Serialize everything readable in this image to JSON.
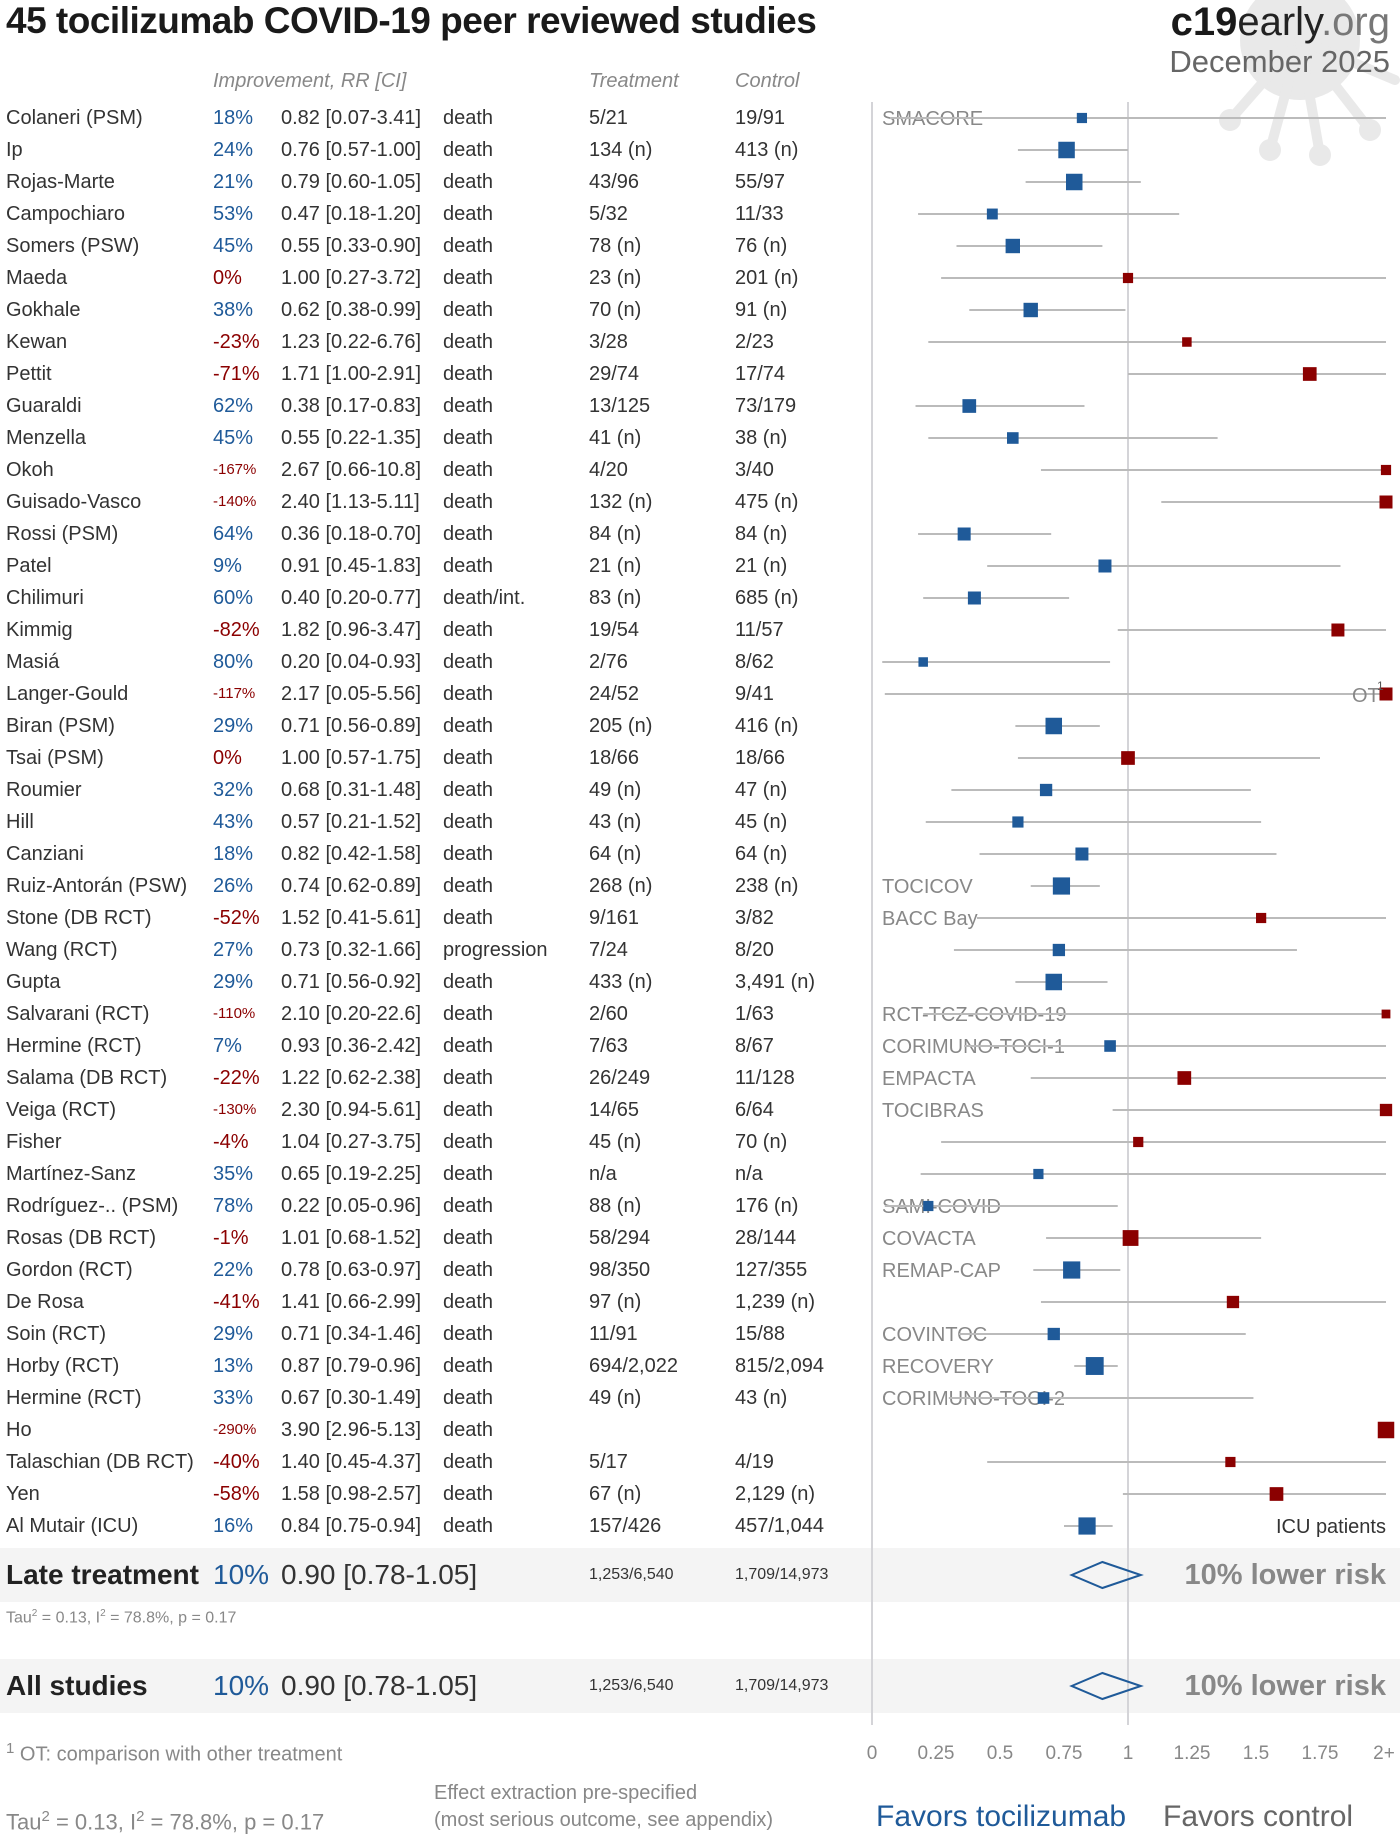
{
  "header": {
    "title": "45 tocilizumab COVID-19 peer reviewed studies",
    "brand_c19": "c19",
    "brand_early": "early",
    "brand_org": ".org",
    "date": "December 2025"
  },
  "columns": {
    "improvement": "Improvement, RR [CI]",
    "treatment": "Treatment",
    "control": "Control"
  },
  "colors": {
    "favors_treatment": "#1f5a99",
    "favors_control": "#8b0000",
    "ci_line": "#bbbbbb",
    "summary_band": "#f4f4f4"
  },
  "chart_data": {
    "type": "forest",
    "title": "45 tocilizumab COVID-19 peer reviewed studies",
    "xlabel_left": "Favors tocilizumab",
    "xlabel_right": "Favors control",
    "xlim": [
      0,
      2
    ],
    "ticks": [
      "0",
      "0.25",
      "0.5",
      "0.75",
      "1",
      "1.25",
      "1.5",
      "1.75",
      "2+"
    ],
    "tick_values": [
      0,
      0.25,
      0.5,
      0.75,
      1,
      1.25,
      1.5,
      1.75,
      2
    ],
    "studies": [
      {
        "name": "Colaneri (PSM)",
        "improvement": "18%",
        "rr": 0.82,
        "lo": 0.07,
        "hi": 3.41,
        "rr_text": "0.82 [0.07-3.41]",
        "outcome": "death",
        "treatment": "5/21",
        "control": "19/91",
        "trial": "SMACORE",
        "weight": 0.3
      },
      {
        "name": "Ip",
        "improvement": "24%",
        "rr": 0.76,
        "lo": 0.57,
        "hi": 1.0,
        "rr_text": "0.76 [0.57-1.00]",
        "outcome": "death",
        "treatment": "134 (n)",
        "control": "413 (n)",
        "trial": "",
        "weight": 0.75
      },
      {
        "name": "Rojas-Marte",
        "improvement": "21%",
        "rr": 0.79,
        "lo": 0.6,
        "hi": 1.05,
        "rr_text": "0.79 [0.60-1.05]",
        "outcome": "death",
        "treatment": "43/96",
        "control": "55/97",
        "trial": "",
        "weight": 0.75
      },
      {
        "name": "Campochiaro",
        "improvement": "53%",
        "rr": 0.47,
        "lo": 0.18,
        "hi": 1.2,
        "rr_text": "0.47 [0.18-1.20]",
        "outcome": "death",
        "treatment": "5/32",
        "control": "11/33",
        "trial": "",
        "weight": 0.35
      },
      {
        "name": "Somers (PSW)",
        "improvement": "45%",
        "rr": 0.55,
        "lo": 0.33,
        "hi": 0.9,
        "rr_text": "0.55 [0.33-0.90]",
        "outcome": "death",
        "treatment": "78 (n)",
        "control": "76 (n)",
        "trial": "",
        "weight": 0.6
      },
      {
        "name": "Maeda",
        "improvement": "0%",
        "rr": 1.0,
        "lo": 0.27,
        "hi": 3.72,
        "rr_text": "1.00 [0.27-3.72]",
        "outcome": "death",
        "treatment": "23 (n)",
        "control": "201 (n)",
        "trial": "",
        "weight": 0.3
      },
      {
        "name": "Gokhale",
        "improvement": "38%",
        "rr": 0.62,
        "lo": 0.38,
        "hi": 0.99,
        "rr_text": "0.62 [0.38-0.99]",
        "outcome": "death",
        "treatment": "70 (n)",
        "control": "91 (n)",
        "trial": "",
        "weight": 0.6
      },
      {
        "name": "Kewan",
        "improvement": "-23%",
        "rr": 1.23,
        "lo": 0.22,
        "hi": 6.76,
        "rr_text": "1.23 [0.22-6.76]",
        "outcome": "death",
        "treatment": "3/28",
        "control": "2/23",
        "trial": "",
        "weight": 0.25
      },
      {
        "name": "Pettit",
        "improvement": "-71%",
        "rr": 1.71,
        "lo": 1.0,
        "hi": 2.91,
        "rr_text": "1.71 [1.00-2.91]",
        "outcome": "death",
        "treatment": "29/74",
        "control": "17/74",
        "trial": "",
        "weight": 0.55
      },
      {
        "name": "Guaraldi",
        "improvement": "62%",
        "rr": 0.38,
        "lo": 0.17,
        "hi": 0.83,
        "rr_text": "0.38 [0.17-0.83]",
        "outcome": "death",
        "treatment": "13/125",
        "control": "73/179",
        "trial": "",
        "weight": 0.55
      },
      {
        "name": "Menzella",
        "improvement": "45%",
        "rr": 0.55,
        "lo": 0.22,
        "hi": 1.35,
        "rr_text": "0.55 [0.22-1.35]",
        "outcome": "death",
        "treatment": "41 (n)",
        "control": "38 (n)",
        "trial": "",
        "weight": 0.4
      },
      {
        "name": "Okoh",
        "improvement": "-167%",
        "rr": 2.67,
        "lo": 0.66,
        "hi": 10.8,
        "rr_text": "2.67 [0.66-10.8]",
        "outcome": "death",
        "treatment": "4/20",
        "control": "3/40",
        "trial": "",
        "weight": 0.3
      },
      {
        "name": "Guisado-Vasco",
        "improvement": "-140%",
        "rr": 2.4,
        "lo": 1.13,
        "hi": 5.11,
        "rr_text": "2.40 [1.13-5.11]",
        "outcome": "death",
        "treatment": "132 (n)",
        "control": "475 (n)",
        "trial": "",
        "weight": 0.5
      },
      {
        "name": "Rossi (PSM)",
        "improvement": "64%",
        "rr": 0.36,
        "lo": 0.18,
        "hi": 0.7,
        "rr_text": "0.36 [0.18-0.70]",
        "outcome": "death",
        "treatment": "84 (n)",
        "control": "84 (n)",
        "trial": "",
        "weight": 0.5
      },
      {
        "name": "Patel",
        "improvement": "9%",
        "rr": 0.91,
        "lo": 0.45,
        "hi": 1.83,
        "rr_text": "0.91 [0.45-1.83]",
        "outcome": "death",
        "treatment": "21 (n)",
        "control": "21 (n)",
        "trial": "",
        "weight": 0.5
      },
      {
        "name": "Chilimuri",
        "improvement": "60%",
        "rr": 0.4,
        "lo": 0.2,
        "hi": 0.77,
        "rr_text": "0.40 [0.20-0.77]",
        "outcome": "death/int.",
        "treatment": "83 (n)",
        "control": "685 (n)",
        "trial": "",
        "weight": 0.5
      },
      {
        "name": "Kimmig",
        "improvement": "-82%",
        "rr": 1.82,
        "lo": 0.96,
        "hi": 3.47,
        "rr_text": "1.82 [0.96-3.47]",
        "outcome": "death",
        "treatment": "19/54",
        "control": "11/57",
        "trial": "",
        "weight": 0.5
      },
      {
        "name": "Masiá",
        "improvement": "80%",
        "rr": 0.2,
        "lo": 0.04,
        "hi": 0.93,
        "rr_text": "0.20 [0.04-0.93]",
        "outcome": "death",
        "treatment": "2/76",
        "control": "8/62",
        "trial": "",
        "weight": 0.25
      },
      {
        "name": "Langer-Gould",
        "improvement": "-117%",
        "rr": 2.17,
        "lo": 0.05,
        "hi": 5.56,
        "rr_text": "2.17 [0.05-5.56]",
        "outcome": "death",
        "treatment": "24/52",
        "control": "9/41",
        "trial": "",
        "weight": 0.5,
        "note": "OT",
        "note_sup": "1"
      },
      {
        "name": "Biran (PSM)",
        "improvement": "29%",
        "rr": 0.71,
        "lo": 0.56,
        "hi": 0.89,
        "rr_text": "0.71 [0.56-0.89]",
        "outcome": "death",
        "treatment": "205 (n)",
        "control": "416 (n)",
        "trial": "",
        "weight": 0.75
      },
      {
        "name": "Tsai (PSM)",
        "improvement": "0%",
        "rr": 1.0,
        "lo": 0.57,
        "hi": 1.75,
        "rr_text": "1.00 [0.57-1.75]",
        "outcome": "death",
        "treatment": "18/66",
        "control": "18/66",
        "trial": "",
        "weight": 0.55
      },
      {
        "name": "Roumier",
        "improvement": "32%",
        "rr": 0.68,
        "lo": 0.31,
        "hi": 1.48,
        "rr_text": "0.68 [0.31-1.48]",
        "outcome": "death",
        "treatment": "49 (n)",
        "control": "47 (n)",
        "trial": "",
        "weight": 0.45
      },
      {
        "name": "Hill",
        "improvement": "43%",
        "rr": 0.57,
        "lo": 0.21,
        "hi": 1.52,
        "rr_text": "0.57 [0.21-1.52]",
        "outcome": "death",
        "treatment": "43 (n)",
        "control": "45 (n)",
        "trial": "",
        "weight": 0.37
      },
      {
        "name": "Canziani",
        "improvement": "18%",
        "rr": 0.82,
        "lo": 0.42,
        "hi": 1.58,
        "rr_text": "0.82 [0.42-1.58]",
        "outcome": "death",
        "treatment": "64 (n)",
        "control": "64 (n)",
        "trial": "",
        "weight": 0.5
      },
      {
        "name": "Ruiz-Antorán (PSW)",
        "improvement": "26%",
        "rr": 0.74,
        "lo": 0.62,
        "hi": 0.89,
        "rr_text": "0.74 [0.62-0.89]",
        "outcome": "death",
        "treatment": "268 (n)",
        "control": "238 (n)",
        "trial": "TOCICOV",
        "weight": 0.8
      },
      {
        "name": "Stone (DB RCT)",
        "improvement": "-52%",
        "rr": 1.52,
        "lo": 0.41,
        "hi": 5.61,
        "rr_text": "1.52 [0.41-5.61]",
        "outcome": "death",
        "treatment": "9/161",
        "control": "3/82",
        "trial": "BACC Bay",
        "weight": 0.3
      },
      {
        "name": "Wang (RCT)",
        "improvement": "27%",
        "rr": 0.73,
        "lo": 0.32,
        "hi": 1.66,
        "rr_text": "0.73 [0.32-1.66]",
        "outcome": "progression",
        "treatment": "7/24",
        "control": "8/20",
        "trial": "",
        "weight": 0.45
      },
      {
        "name": "Gupta",
        "improvement": "29%",
        "rr": 0.71,
        "lo": 0.56,
        "hi": 0.92,
        "rr_text": "0.71 [0.56-0.92]",
        "outcome": "death",
        "treatment": "433 (n)",
        "control": "3,491 (n)",
        "trial": "",
        "weight": 0.75
      },
      {
        "name": "Salvarani (RCT)",
        "improvement": "-110%",
        "rr": 2.1,
        "lo": 0.2,
        "hi": 22.6,
        "rr_text": "2.10 [0.20-22.6]",
        "outcome": "death",
        "treatment": "2/60",
        "control": "1/63",
        "trial": "RCT-TCZ-COVID-19",
        "weight": 0.2
      },
      {
        "name": "Hermine (RCT)",
        "improvement": "7%",
        "rr": 0.93,
        "lo": 0.36,
        "hi": 2.42,
        "rr_text": "0.93 [0.36-2.42]",
        "outcome": "death",
        "treatment": "7/63",
        "control": "8/67",
        "trial": "CORIMUNO-TOCI-1",
        "weight": 0.4
      },
      {
        "name": "Salama (DB RCT)",
        "improvement": "-22%",
        "rr": 1.22,
        "lo": 0.62,
        "hi": 2.38,
        "rr_text": "1.22 [0.62-2.38]",
        "outcome": "death",
        "treatment": "26/249",
        "control": "11/128",
        "trial": "EMPACTA",
        "weight": 0.55
      },
      {
        "name": "Veiga (RCT)",
        "improvement": "-130%",
        "rr": 2.3,
        "lo": 0.94,
        "hi": 5.61,
        "rr_text": "2.30 [0.94-5.61]",
        "outcome": "death",
        "treatment": "14/65",
        "control": "6/64",
        "trial": "TOCIBRAS",
        "weight": 0.45
      },
      {
        "name": "Fisher",
        "improvement": "-4%",
        "rr": 1.04,
        "lo": 0.27,
        "hi": 3.75,
        "rr_text": "1.04 [0.27-3.75]",
        "outcome": "death",
        "treatment": "45 (n)",
        "control": "70 (n)",
        "trial": "",
        "weight": 0.3
      },
      {
        "name": "Martínez-Sanz",
        "improvement": "35%",
        "rr": 0.65,
        "lo": 0.19,
        "hi": 2.25,
        "rr_text": "0.65 [0.19-2.25]",
        "outcome": "death",
        "treatment": "n/a",
        "control": "n/a",
        "trial": "",
        "weight": 0.3
      },
      {
        "name": "Rodríguez-.. (PSM)",
        "improvement": "78%",
        "rr": 0.22,
        "lo": 0.05,
        "hi": 0.96,
        "rr_text": "0.22 [0.05-0.96]",
        "outcome": "death",
        "treatment": "88 (n)",
        "control": "176 (n)",
        "trial": "SAMI-COVID",
        "weight": 0.3
      },
      {
        "name": "Rosas (DB RCT)",
        "improvement": "-1%",
        "rr": 1.01,
        "lo": 0.68,
        "hi": 1.52,
        "rr_text": "1.01 [0.68-1.52]",
        "outcome": "death",
        "treatment": "58/294",
        "control": "28/144",
        "trial": "COVACTA",
        "weight": 0.7
      },
      {
        "name": "Gordon (RCT)",
        "improvement": "22%",
        "rr": 0.78,
        "lo": 0.63,
        "hi": 0.97,
        "rr_text": "0.78 [0.63-0.97]",
        "outcome": "death",
        "treatment": "98/350",
        "control": "127/355",
        "trial": "REMAP-CAP",
        "weight": 0.8
      },
      {
        "name": "De Rosa",
        "improvement": "-41%",
        "rr": 1.41,
        "lo": 0.66,
        "hi": 2.99,
        "rr_text": "1.41 [0.66-2.99]",
        "outcome": "death",
        "treatment": "97 (n)",
        "control": "1,239 (n)",
        "trial": "",
        "weight": 0.45
      },
      {
        "name": "Soin (RCT)",
        "improvement": "29%",
        "rr": 0.71,
        "lo": 0.34,
        "hi": 1.46,
        "rr_text": "0.71 [0.34-1.46]",
        "outcome": "death",
        "treatment": "11/91",
        "control": "15/88",
        "trial": "COVINTOC",
        "weight": 0.45
      },
      {
        "name": "Horby (RCT)",
        "improvement": "13%",
        "rr": 0.87,
        "lo": 0.79,
        "hi": 0.96,
        "rr_text": "0.87 [0.79-0.96]",
        "outcome": "death",
        "treatment": "694/2,022",
        "control": "815/2,094",
        "trial": "RECOVERY",
        "weight": 0.85
      },
      {
        "name": "Hermine (RCT)",
        "improvement": "33%",
        "rr": 0.67,
        "lo": 0.3,
        "hi": 1.49,
        "rr_text": "0.67 [0.30-1.49]",
        "outcome": "death",
        "treatment": "49 (n)",
        "control": "43 (n)",
        "trial": "CORIMUNO-TOCI-2",
        "weight": 0.4
      },
      {
        "name": "Ho",
        "improvement": "-290%",
        "rr": 3.9,
        "lo": 2.96,
        "hi": 5.13,
        "rr_text": "3.90 [2.96-5.13]",
        "outcome": "death",
        "treatment": "",
        "control": "",
        "trial": "",
        "weight": 0.75
      },
      {
        "name": "Talaschian (DB RCT)",
        "improvement": "-40%",
        "rr": 1.4,
        "lo": 0.45,
        "hi": 4.37,
        "rr_text": "1.40 [0.45-4.37]",
        "outcome": "death",
        "treatment": "5/17",
        "control": "4/19",
        "trial": "",
        "weight": 0.3
      },
      {
        "name": "Yen",
        "improvement": "-58%",
        "rr": 1.58,
        "lo": 0.98,
        "hi": 2.57,
        "rr_text": "1.58 [0.98-2.57]",
        "outcome": "death",
        "treatment": "67 (n)",
        "control": "2,129 (n)",
        "trial": "",
        "weight": 0.55
      },
      {
        "name": "Al Mutair (ICU)",
        "improvement": "16%",
        "rr": 0.84,
        "lo": 0.75,
        "hi": 0.94,
        "rr_text": "0.84 [0.75-0.94]",
        "outcome": "death",
        "treatment": "157/426",
        "control": "457/1,044",
        "trial": "",
        "weight": 0.8,
        "right_note": "ICU patients"
      }
    ],
    "summaries": [
      {
        "name": "Late treatment",
        "improvement": "10%",
        "rr": 0.9,
        "lo": 0.78,
        "hi": 1.05,
        "rr_text": "0.90 [0.78-1.05]",
        "treatment": "1,253/6,540",
        "control": "1,709/14,973",
        "risk_text": "10% lower risk",
        "heterogeneity": {
          "tau2": "0.13",
          "i2": "78.8%",
          "p": "0.17"
        }
      },
      {
        "name": "All studies",
        "improvement": "10%",
        "rr": 0.9,
        "lo": 0.78,
        "hi": 1.05,
        "rr_text": "0.90 [0.78-1.05]",
        "treatment": "1,253/6,540",
        "control": "1,709/14,973",
        "risk_text": "10% lower risk"
      }
    ]
  },
  "footer": {
    "footnote_sup": "1",
    "footnote_text": "OT: comparison with other treatment",
    "tau_prefix": "Tau",
    "tau_rest": " = 0.13, I",
    "tau_tail": " = 78.8%, p = 0.17",
    "effect_line1": "Effect extraction pre-specified",
    "effect_line2": "(most serious outcome, see appendix)",
    "favors_treatment": "Favors tocilizumab",
    "favors_control": "Favors control"
  }
}
